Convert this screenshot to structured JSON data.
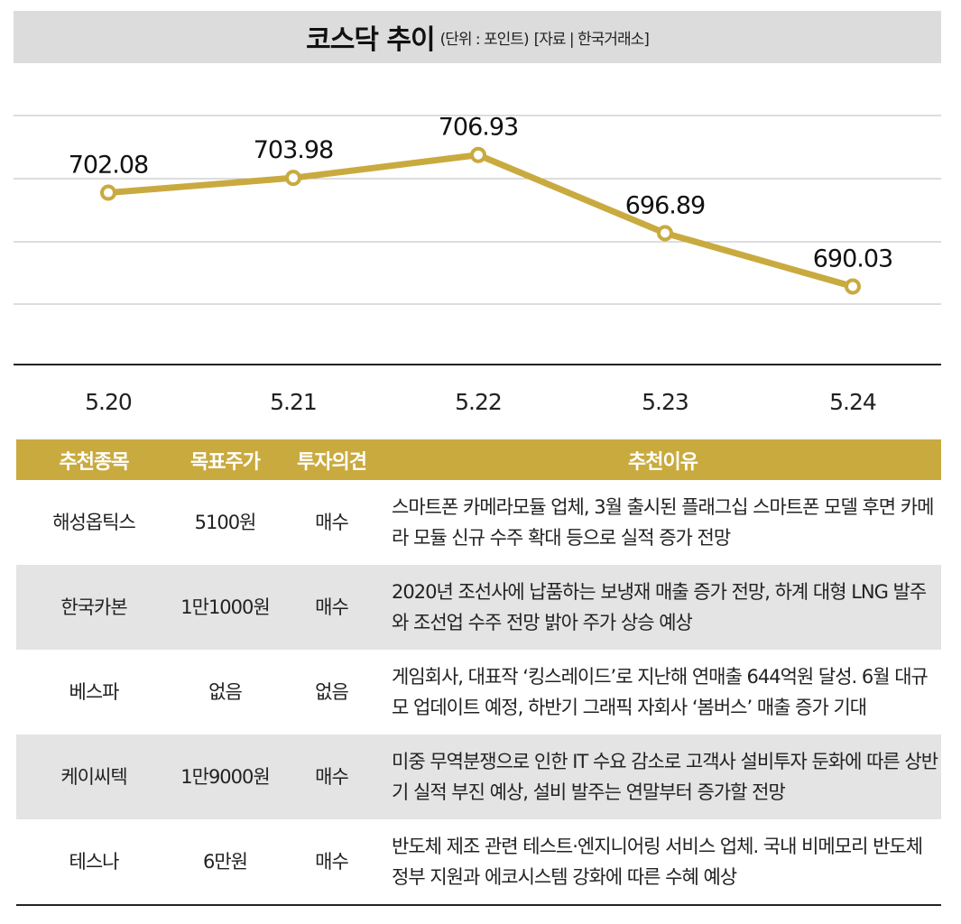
{
  "title": "코스닥 추이",
  "unit": "(단위 : 포인트)",
  "source": "[자료 | 한국거래소]",
  "chart_data": {
    "type": "line",
    "title": "코스닥 추이",
    "x": [
      "5.20",
      "5.21",
      "5.22",
      "5.23",
      "5.24"
    ],
    "values": [
      702.08,
      703.98,
      706.93,
      696.89,
      690.03
    ],
    "data_labels": [
      "702.08",
      "703.98",
      "706.93",
      "696.89",
      "690.03"
    ],
    "ylim": [
      680,
      712
    ],
    "grid": true,
    "color": "#c9aa3f"
  },
  "table": {
    "headers": [
      "추천종목",
      "목표주가",
      "투자의견",
      "추천이유"
    ],
    "rows": [
      {
        "stock": "해성옵틱스",
        "target": "5100원",
        "opinion": "매수",
        "reason": "스마트폰 카메라모듈 업체, 3월 출시된 플래그십 스마트폰 모델 후면 카메라 모듈 신규 수주 확대 등으로 실적 증가 전망"
      },
      {
        "stock": "한국카본",
        "target": "1만1000원",
        "opinion": "매수",
        "reason": "2020년 조선사에 납품하는 보냉재 매출 증가 전망, 하계 대형 LNG 발주와 조선업 수주 전망 밝아 주가 상승 예상"
      },
      {
        "stock": "베스파",
        "target": "없음",
        "opinion": "없음",
        "reason": "게임회사, 대표작 ‘킹스레이드’로 지난해 연매출 644억원 달성. 6월 대규모 업데이트 예정, 하반기 그래픽 자회사 ‘봄버스’ 매출 증가 기대"
      },
      {
        "stock": "케이씨텍",
        "target": "1만9000원",
        "opinion": "매수",
        "reason": "미중 무역분쟁으로 인한 IT 수요 감소로 고객사 설비투자 둔화에 따른 상반기 실적 부진 예상, 설비 발주는 연말부터 증가할 전망"
      },
      {
        "stock": "테스나",
        "target": "6만원",
        "opinion": "매수",
        "reason": "반도체 제조 관련 테스트·엔지니어링 서비스 업체. 국내 비메모리 반도체 정부 지원과 에코시스템 강화에 따른 수혜 예상"
      }
    ]
  }
}
